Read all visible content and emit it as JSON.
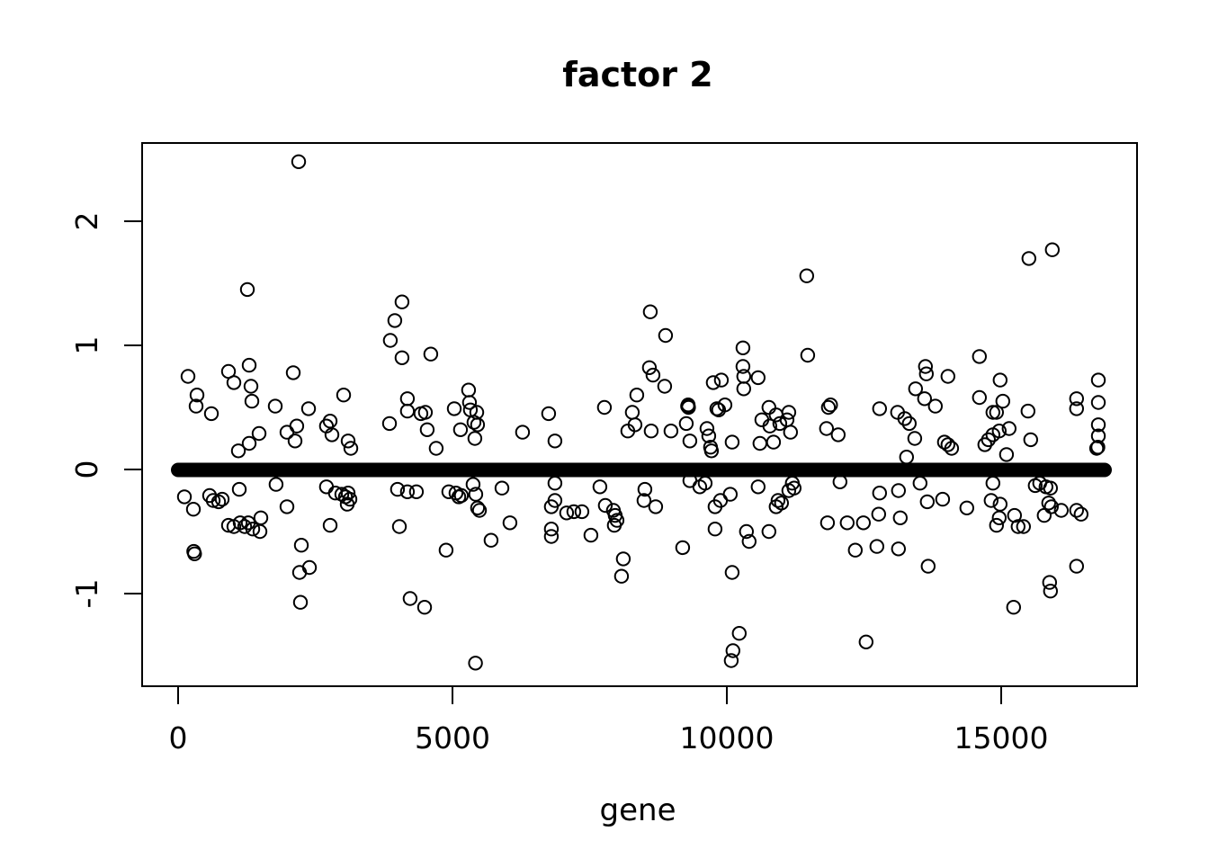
{
  "figure": {
    "background": "#ffffff",
    "foreground": "#000000"
  },
  "chart_data": {
    "type": "scatter",
    "title": "factor 2",
    "xlabel": "gene",
    "ylabel": "",
    "marker": "open-circle",
    "marker_color": "#000000",
    "grid": false,
    "legend": null,
    "x_ticks": [
      0,
      5000,
      10000,
      15000
    ],
    "y_ticks": [
      -1,
      0,
      1,
      2
    ],
    "xlim": [
      -620,
      17490
    ],
    "ylim": [
      -1.75,
      2.63
    ],
    "zero_band": {
      "description": "dense run of overplotted points at value 0 spanning nearly all genes, drawn as a thick black band",
      "x_start": 0,
      "x_end": 16885,
      "y": 0
    },
    "points": [
      [
        115,
        -0.22
      ],
      [
        180,
        0.75
      ],
      [
        279,
        -0.32
      ],
      [
        285,
        -0.66
      ],
      [
        300,
        -0.68
      ],
      [
        328,
        0.51
      ],
      [
        344,
        0.6
      ],
      [
        574,
        -0.21
      ],
      [
        606,
        0.45
      ],
      [
        639,
        -0.25
      ],
      [
        738,
        -0.26
      ],
      [
        803,
        -0.24
      ],
      [
        918,
        0.79
      ],
      [
        918,
        -0.45
      ],
      [
        1016,
        0.7
      ],
      [
        1016,
        -0.46
      ],
      [
        1098,
        0.15
      ],
      [
        1114,
        -0.16
      ],
      [
        1131,
        -0.43
      ],
      [
        1213,
        -0.46
      ],
      [
        1262,
        1.45
      ],
      [
        1278,
        -0.43
      ],
      [
        1295,
        0.84
      ],
      [
        1295,
        0.21
      ],
      [
        1328,
        0.67
      ],
      [
        1344,
        0.55
      ],
      [
        1360,
        -0.48
      ],
      [
        1475,
        0.29
      ],
      [
        1491,
        -0.5
      ],
      [
        1508,
        -0.39
      ],
      [
        1770,
        0.51
      ],
      [
        1786,
        -0.12
      ],
      [
        1983,
        0.3
      ],
      [
        1983,
        -0.3
      ],
      [
        2098,
        0.78
      ],
      [
        2131,
        0.23
      ],
      [
        2163,
        0.35
      ],
      [
        2196,
        2.48
      ],
      [
        2213,
        -0.83
      ],
      [
        2229,
        -1.07
      ],
      [
        2246,
        -0.61
      ],
      [
        2377,
        0.49
      ],
      [
        2393,
        -0.79
      ],
      [
        2704,
        0.35
      ],
      [
        2704,
        -0.14
      ],
      [
        2770,
        0.39
      ],
      [
        2770,
        -0.45
      ],
      [
        2803,
        0.28
      ],
      [
        2868,
        -0.19
      ],
      [
        2983,
        -0.2
      ],
      [
        3016,
        0.6
      ],
      [
        3049,
        -0.22
      ],
      [
        3082,
        -0.28
      ],
      [
        3098,
        0.23
      ],
      [
        3098,
        -0.19
      ],
      [
        3131,
        -0.24
      ],
      [
        3147,
        0.17
      ],
      [
        3852,
        0.37
      ],
      [
        3868,
        1.04
      ],
      [
        3950,
        1.2
      ],
      [
        3999,
        -0.16
      ],
      [
        4032,
        -0.46
      ],
      [
        4081,
        1.35
      ],
      [
        4081,
        0.9
      ],
      [
        4179,
        0.57
      ],
      [
        4179,
        0.47
      ],
      [
        4179,
        -0.18
      ],
      [
        4228,
        -1.04
      ],
      [
        4343,
        -0.18
      ],
      [
        4425,
        0.45
      ],
      [
        4491,
        -1.11
      ],
      [
        4507,
        0.46
      ],
      [
        4540,
        0.32
      ],
      [
        4605,
        0.93
      ],
      [
        4704,
        0.17
      ],
      [
        4884,
        -0.65
      ],
      [
        4933,
        -0.18
      ],
      [
        5032,
        0.49
      ],
      [
        5064,
        -0.19
      ],
      [
        5114,
        -0.22
      ],
      [
        5146,
        0.32
      ],
      [
        5163,
        -0.21
      ],
      [
        5294,
        0.64
      ],
      [
        5310,
        0.54
      ],
      [
        5327,
        0.48
      ],
      [
        5376,
        -0.12
      ],
      [
        5392,
        0.38
      ],
      [
        5409,
        0.25
      ],
      [
        5420,
        -1.56
      ],
      [
        5425,
        -0.2
      ],
      [
        5442,
        0.46
      ],
      [
        5458,
        0.36
      ],
      [
        5458,
        -0.31
      ],
      [
        5491,
        -0.33
      ],
      [
        5704,
        -0.57
      ],
      [
        5901,
        -0.15
      ],
      [
        6048,
        -0.43
      ],
      [
        6277,
        0.3
      ],
      [
        6753,
        0.45
      ],
      [
        6802,
        -0.3
      ],
      [
        6802,
        -0.48
      ],
      [
        6802,
        -0.54
      ],
      [
        6868,
        0.23
      ],
      [
        6868,
        -0.11
      ],
      [
        6868,
        -0.25
      ],
      [
        7081,
        -0.35
      ],
      [
        7212,
        -0.34
      ],
      [
        7359,
        -0.34
      ],
      [
        7523,
        -0.53
      ],
      [
        7687,
        -0.14
      ],
      [
        7769,
        0.5
      ],
      [
        7785,
        -0.29
      ],
      [
        7933,
        -0.33
      ],
      [
        7949,
        -0.45
      ],
      [
        7966,
        -0.37
      ],
      [
        7998,
        -0.41
      ],
      [
        8080,
        -0.86
      ],
      [
        8113,
        -0.72
      ],
      [
        8195,
        0.31
      ],
      [
        8277,
        0.46
      ],
      [
        8326,
        0.36
      ],
      [
        8359,
        0.6
      ],
      [
        8490,
        -0.25
      ],
      [
        8506,
        -0.16
      ],
      [
        8588,
        0.82
      ],
      [
        8605,
        1.27
      ],
      [
        8621,
        0.31
      ],
      [
        8654,
        0.76
      ],
      [
        8703,
        -0.3
      ],
      [
        8867,
        0.67
      ],
      [
        8883,
        1.08
      ],
      [
        8982,
        0.31
      ],
      [
        9195,
        -0.63
      ],
      [
        9260,
        0.37
      ],
      [
        9285,
        0.51
      ],
      [
        9295,
        0.52
      ],
      [
        9301,
        0.5
      ],
      [
        9326,
        0.23
      ],
      [
        9326,
        -0.09
      ],
      [
        9506,
        -0.14
      ],
      [
        9605,
        -0.11
      ],
      [
        9637,
        0.33
      ],
      [
        9670,
        0.27
      ],
      [
        9703,
        0.18
      ],
      [
        9719,
        0.15
      ],
      [
        9752,
        0.7
      ],
      [
        9785,
        -0.3
      ],
      [
        9785,
        -0.48
      ],
      [
        9818,
        0.49
      ],
      [
        9850,
        0.48
      ],
      [
        9883,
        -0.25
      ],
      [
        9900,
        0.72
      ],
      [
        9965,
        0.52
      ],
      [
        10063,
        -0.2
      ],
      [
        10080,
        -1.54
      ],
      [
        10096,
        -0.83
      ],
      [
        10096,
        0.22
      ],
      [
        10112,
        -1.46
      ],
      [
        10227,
        -1.32
      ],
      [
        10293,
        0.98
      ],
      [
        10293,
        0.83
      ],
      [
        10309,
        0.75
      ],
      [
        10309,
        0.65
      ],
      [
        10358,
        -0.5
      ],
      [
        10407,
        -0.58
      ],
      [
        10571,
        0.74
      ],
      [
        10571,
        -0.14
      ],
      [
        10604,
        0.21
      ],
      [
        10637,
        0.4
      ],
      [
        10768,
        0.5
      ],
      [
        10768,
        -0.5
      ],
      [
        10784,
        0.35
      ],
      [
        10850,
        0.22
      ],
      [
        10899,
        0.44
      ],
      [
        10899,
        -0.3
      ],
      [
        10932,
        -0.25
      ],
      [
        10965,
        0.37
      ],
      [
        10997,
        -0.27
      ],
      [
        11096,
        0.4
      ],
      [
        11129,
        0.46
      ],
      [
        11129,
        -0.17
      ],
      [
        11161,
        0.3
      ],
      [
        11194,
        -0.11
      ],
      [
        11227,
        -0.15
      ],
      [
        11456,
        1.56
      ],
      [
        11473,
        0.92
      ],
      [
        11817,
        0.33
      ],
      [
        11834,
        -0.43
      ],
      [
        11850,
        0.5
      ],
      [
        11890,
        0.52
      ],
      [
        12030,
        0.28
      ],
      [
        12063,
        -0.1
      ],
      [
        12194,
        -0.43
      ],
      [
        12341,
        -0.65
      ],
      [
        12489,
        -0.43
      ],
      [
        12538,
        -1.39
      ],
      [
        12735,
        -0.62
      ],
      [
        12767,
        -0.36
      ],
      [
        12784,
        0.49
      ],
      [
        12784,
        -0.19
      ],
      [
        13112,
        0.46
      ],
      [
        13128,
        -0.17
      ],
      [
        13128,
        -0.64
      ],
      [
        13161,
        -0.39
      ],
      [
        13243,
        0.41
      ],
      [
        13276,
        0.1
      ],
      [
        13325,
        0.37
      ],
      [
        13424,
        0.25
      ],
      [
        13440,
        0.65
      ],
      [
        13522,
        -0.11
      ],
      [
        13604,
        0.57
      ],
      [
        13620,
        0.83
      ],
      [
        13636,
        0.77
      ],
      [
        13653,
        -0.26
      ],
      [
        13669,
        -0.78
      ],
      [
        13800,
        0.51
      ],
      [
        13932,
        -0.24
      ],
      [
        13965,
        0.22
      ],
      [
        14030,
        0.2
      ],
      [
        14030,
        0.75
      ],
      [
        14096,
        0.17
      ],
      [
        14374,
        -0.31
      ],
      [
        14604,
        0.91
      ],
      [
        14604,
        0.58
      ],
      [
        14702,
        0.2
      ],
      [
        14767,
        0.24
      ],
      [
        14817,
        -0.25
      ],
      [
        14850,
        0.46
      ],
      [
        14850,
        0.28
      ],
      [
        14850,
        -0.11
      ],
      [
        14915,
        0.46
      ],
      [
        14915,
        -0.45
      ],
      [
        14964,
        0.31
      ],
      [
        14964,
        -0.39
      ],
      [
        14981,
        0.72
      ],
      [
        14981,
        -0.28
      ],
      [
        15030,
        0.55
      ],
      [
        15096,
        0.12
      ],
      [
        15145,
        0.33
      ],
      [
        15227,
        -1.11
      ],
      [
        15243,
        -0.37
      ],
      [
        15309,
        -0.46
      ],
      [
        15407,
        -0.46
      ],
      [
        15489,
        0.47
      ],
      [
        15505,
        1.7
      ],
      [
        15538,
        0.24
      ],
      [
        15620,
        -0.13
      ],
      [
        15702,
        -0.11
      ],
      [
        15784,
        -0.37
      ],
      [
        15817,
        -0.14
      ],
      [
        15866,
        -0.27
      ],
      [
        15882,
        -0.91
      ],
      [
        15898,
        -0.98
      ],
      [
        15898,
        -0.15
      ],
      [
        15915,
        -0.3
      ],
      [
        15931,
        1.77
      ],
      [
        16095,
        -0.33
      ],
      [
        16374,
        0.57
      ],
      [
        16374,
        0.49
      ],
      [
        16374,
        -0.33
      ],
      [
        16374,
        -0.78
      ],
      [
        16456,
        -0.36
      ],
      [
        16740,
        0.17
      ],
      [
        16762,
        0.18
      ],
      [
        16770,
        0.72
      ],
      [
        16770,
        0.54
      ],
      [
        16770,
        0.36
      ],
      [
        16770,
        0.27
      ]
    ]
  }
}
